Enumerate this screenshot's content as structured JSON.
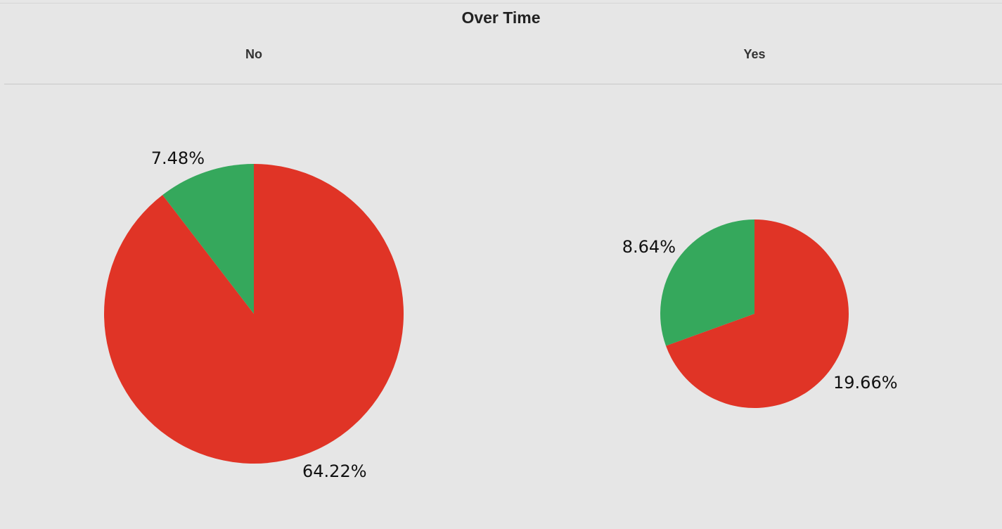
{
  "chart_data": [
    {
      "type": "pie",
      "title": "Over Time",
      "facet": "No",
      "slices": [
        {
          "value": 64.22,
          "label": "64.22%",
          "color": "#e03426"
        },
        {
          "value": 7.48,
          "label": "7.48%",
          "color": "#35a85c"
        }
      ]
    },
    {
      "type": "pie",
      "title": "Over Time",
      "facet": "Yes",
      "slices": [
        {
          "value": 19.66,
          "label": "19.66%",
          "color": "#e03426"
        },
        {
          "value": 8.64,
          "label": "8.64%",
          "color": "#35a85c"
        }
      ]
    }
  ]
}
